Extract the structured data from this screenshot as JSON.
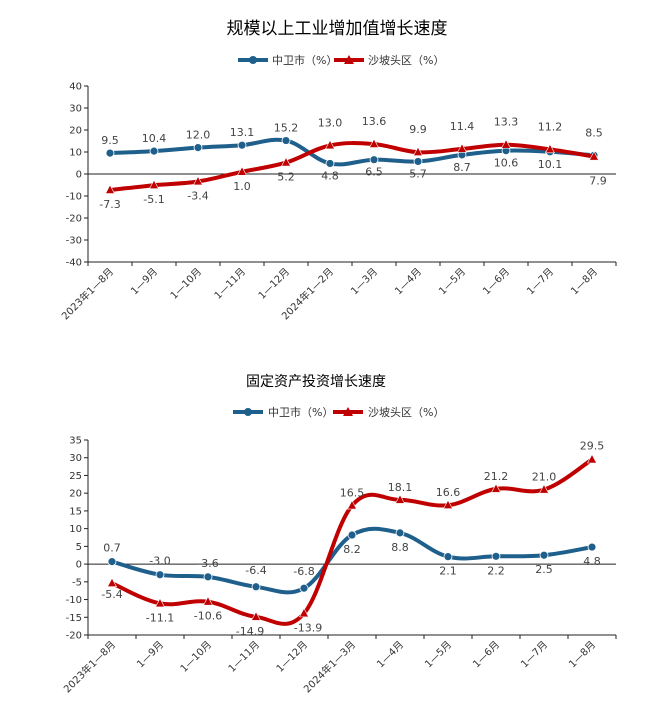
{
  "chart_data": [
    {
      "type": "line",
      "title": "规模以上工业增加值增长速度",
      "categories": [
        "2023年1—8月",
        "1—9月",
        "1—10月",
        "1—11月",
        "1—12月",
        "2024年1—2月",
        "1—3月",
        "1—4月",
        "1—5月",
        "1—6月",
        "1—7月",
        "1—8月"
      ],
      "series": [
        {
          "name": "中卫市（%）",
          "color": "#1f5f8b",
          "values": [
            9.5,
            10.4,
            12.0,
            13.1,
            15.2,
            4.8,
            6.5,
            5.7,
            8.7,
            10.6,
            10.1,
            8.5
          ]
        },
        {
          "name": "沙坡头区（%）",
          "color": "#c00000",
          "values": [
            -7.3,
            -5.1,
            -3.4,
            1.0,
            5.2,
            13.0,
            13.6,
            9.9,
            11.4,
            13.3,
            11.2,
            7.9
          ]
        }
      ],
      "label_text": [
        [
          "9.5",
          "10.4",
          "12.0",
          "13.1",
          "15.2",
          "4.8",
          "6.5",
          "5.7",
          "8.7",
          "10.6",
          "10.1",
          "8.5"
        ],
        [
          "-7.3",
          "-5.1",
          "-3.4",
          "1.0",
          "5.2",
          "13.0",
          "13.6",
          "9.9",
          "11.4",
          "13.3",
          "11.2",
          "7.9"
        ]
      ],
      "ylim": [
        -40,
        40
      ],
      "yticks": [
        -40,
        -30,
        -20,
        -10,
        0,
        10,
        20,
        30,
        40
      ],
      "legend": "top"
    },
    {
      "type": "line",
      "title": "固定资产投资增长速度",
      "categories": [
        "2023年1—8月",
        "1—9月",
        "1—10月",
        "1—11月",
        "1—12月",
        "2024年1—3月",
        "1—4月",
        "1—5月",
        "1—6月",
        "1—7月",
        "1—8月"
      ],
      "series": [
        {
          "name": "中卫市（%）",
          "color": "#1f5f8b",
          "values": [
            0.7,
            -3.0,
            -3.6,
            -6.4,
            -6.8,
            8.2,
            8.8,
            2.1,
            2.2,
            2.5,
            4.8
          ]
        },
        {
          "name": "沙坡头区（%）",
          "color": "#c00000",
          "values": [
            -5.4,
            -11.1,
            -10.6,
            -14.9,
            -13.9,
            16.5,
            18.1,
            16.6,
            21.2,
            21.0,
            29.5
          ]
        }
      ],
      "label_text": [
        [
          "0.7",
          "-3.0",
          "-3.6",
          "-6.4",
          "-6.8",
          "8.2",
          "8.8",
          "2.1",
          "2.2",
          "2.5",
          "4.8"
        ],
        [
          "-5.4",
          "-11.1",
          "-10.6",
          "-14.9",
          "-13.9",
          "16.5",
          "18.1",
          "16.6",
          "21.2",
          "21.0",
          "29.5"
        ]
      ],
      "ylim": [
        -20,
        35
      ],
      "yticks": [
        -20,
        -15,
        -10,
        -5,
        0,
        5,
        10,
        15,
        20,
        25,
        30,
        35
      ],
      "legend": "top"
    }
  ]
}
